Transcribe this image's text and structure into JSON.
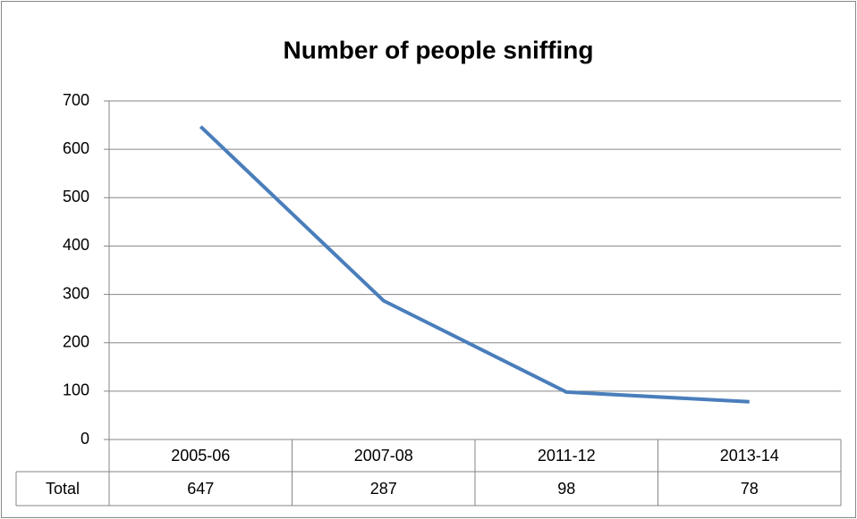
{
  "chart_data": {
    "type": "line",
    "title": "Number of people sniffing",
    "categories": [
      "2005-06",
      "2007-08",
      "2011-12",
      "2013-14"
    ],
    "series": [
      {
        "name": "Total",
        "color": "#4a7ebb",
        "values": [
          647,
          287,
          98,
          78
        ]
      }
    ],
    "ylim": [
      0,
      700
    ],
    "yticks": [
      0,
      100,
      200,
      300,
      400,
      500,
      600,
      700
    ],
    "grid": true,
    "data_table": true
  }
}
